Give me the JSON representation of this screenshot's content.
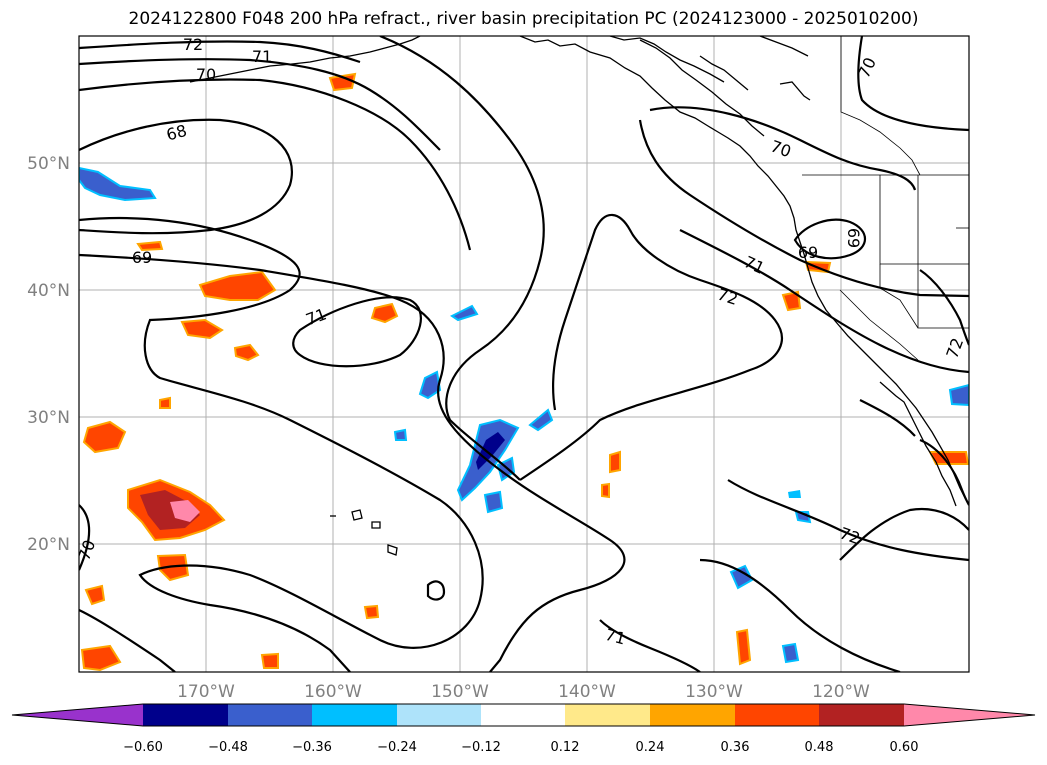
{
  "title": "2024122800 F048 200 hPa refract., river basin precipitation PC (2024123000 - 2025010200)",
  "map": {
    "lon_ticks": [
      "170°W",
      "160°W",
      "150°W",
      "140°W",
      "130°W",
      "120°W"
    ],
    "lat_ticks": [
      "50°N",
      "40°N",
      "30°N",
      "20°N"
    ],
    "contour_labels": [
      "72",
      "71",
      "70",
      "68",
      "69",
      "71",
      "71",
      "72",
      "70",
      "69",
      "69",
      "72",
      "70",
      "72",
      "71",
      "70"
    ]
  },
  "colorbar": {
    "ticks": [
      "−0.60",
      "−0.48",
      "−0.36",
      "−0.24",
      "−0.12",
      "0.12",
      "0.24",
      "0.36",
      "0.48",
      "0.60"
    ],
    "colors": [
      "#9932cc",
      "#00008b",
      "#3a5fcd",
      "#00bfff",
      "#aee3fa",
      "#ffffff",
      "#ffe98a",
      "#ffa500",
      "#ff4500",
      "#b22222",
      "#ff88aa"
    ]
  }
}
